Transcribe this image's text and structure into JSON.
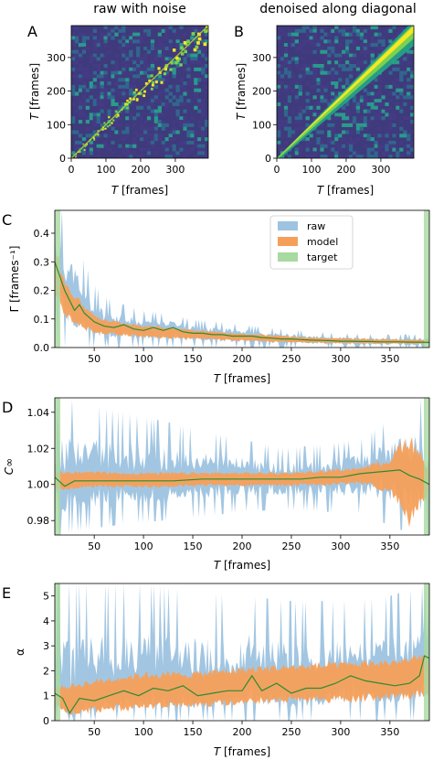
{
  "colors": {
    "raw": "#9dc3e0",
    "model": "#f5a05a",
    "target": "#a7d9a0",
    "target_line": "#2e8b2e",
    "heat_bg": "#3e3a7c",
    "heat_bright": "#f6e821"
  },
  "panel_a": {
    "label": "A",
    "title": "raw with noise",
    "xlabel_var": "T",
    "xlabel_unit": " [frames]",
    "ylabel_var": "T",
    "ylabel_unit": " [frames]",
    "xticks": [
      "0",
      "100",
      "200",
      "300"
    ],
    "yticks": [
      "0",
      "100",
      "200",
      "300"
    ]
  },
  "panel_b": {
    "label": "B",
    "title": "denoised along diagonal",
    "xlabel_var": "T",
    "xlabel_unit": " [frames]",
    "ylabel_var": "T",
    "ylabel_unit": " [frames]",
    "xticks": [
      "0",
      "100",
      "200",
      "300"
    ],
    "yticks": [
      "0",
      "100",
      "200",
      "300"
    ]
  },
  "chart_data": [
    {
      "type": "heatmap",
      "id": "A",
      "title": "raw with noise",
      "xlabel": "T [frames]",
      "ylabel": "T [frames]",
      "xlim": [
        0,
        395
      ],
      "ylim": [
        0,
        395
      ],
      "description_values": {
        "diagonal": "bright",
        "off_diagonal": "noise"
      }
    },
    {
      "type": "heatmap",
      "id": "B",
      "title": "denoised along diagonal",
      "xlabel": "T [frames]",
      "ylabel": "T [frames]",
      "xlim": [
        0,
        395
      ],
      "ylim": [
        0,
        395
      ]
    },
    {
      "type": "area",
      "id": "C",
      "label": "C",
      "xlabel_var": "T",
      "xlabel_unit": " [frames]",
      "ylabel": "Γ [frames⁻¹]",
      "xlim": [
        10,
        390
      ],
      "ylim": [
        0,
        0.48
      ],
      "xticks": [
        50,
        100,
        150,
        200,
        250,
        300,
        350
      ],
      "xtick_labels": [
        "50",
        "100",
        "150",
        "200",
        "250",
        "300",
        "350"
      ],
      "yticks": [
        0.0,
        0.1,
        0.2,
        0.3,
        0.4
      ],
      "ytick_labels": [
        "0.0",
        "0.1",
        "0.2",
        "0.3",
        "0.4"
      ],
      "legend": {
        "position": "top-right",
        "entries": [
          "raw",
          "model",
          "target"
        ]
      },
      "target": {
        "x": [
          10,
          20,
          30,
          35,
          40,
          50,
          60,
          70,
          80,
          90,
          100,
          110,
          120,
          130,
          140,
          150,
          160,
          170,
          180,
          190,
          200,
          210,
          220,
          230,
          240,
          250,
          260,
          270,
          280,
          290,
          300,
          310,
          320,
          330,
          340,
          350,
          360,
          370,
          380,
          390
        ],
        "y": [
          0.3,
          0.2,
          0.13,
          0.15,
          0.12,
          0.09,
          0.075,
          0.07,
          0.08,
          0.065,
          0.06,
          0.07,
          0.06,
          0.07,
          0.055,
          0.05,
          0.05,
          0.045,
          0.045,
          0.04,
          0.04,
          0.04,
          0.035,
          0.033,
          0.03,
          0.03,
          0.028,
          0.026,
          0.025,
          0.024,
          0.022,
          0.022,
          0.021,
          0.021,
          0.02,
          0.02,
          0.02,
          0.019,
          0.019,
          0.018
        ]
      },
      "model_band": {
        "x": [
          10,
          20,
          30,
          40,
          50,
          60,
          80,
          100,
          120,
          150,
          180,
          200,
          230,
          260,
          300,
          350,
          390
        ],
        "lower": [
          0.18,
          0.1,
          0.08,
          0.06,
          0.05,
          0.045,
          0.04,
          0.035,
          0.03,
          0.028,
          0.025,
          0.022,
          0.018,
          0.016,
          0.014,
          0.013,
          0.012
        ],
        "upper": [
          0.35,
          0.24,
          0.19,
          0.15,
          0.12,
          0.1,
          0.09,
          0.08,
          0.075,
          0.065,
          0.055,
          0.05,
          0.045,
          0.038,
          0.033,
          0.03,
          0.028
        ]
      },
      "raw_band": {
        "x": [
          10,
          20,
          30,
          40,
          50,
          60,
          80,
          100,
          120,
          150,
          180,
          200,
          230,
          260,
          300,
          350,
          390
        ],
        "lower": [
          0.0,
          0.0,
          0.0,
          0.0,
          0.0,
          0.0,
          0.0,
          0.0,
          0.0,
          0.0,
          0.0,
          0.0,
          0.0,
          0.0,
          0.0,
          0.0,
          0.0
        ],
        "upper": [
          0.48,
          0.48,
          0.4,
          0.3,
          0.22,
          0.18,
          0.15,
          0.13,
          0.12,
          0.1,
          0.09,
          0.08,
          0.07,
          0.06,
          0.05,
          0.045,
          0.048
        ]
      }
    },
    {
      "type": "area",
      "id": "D",
      "label": "D",
      "xlabel_var": "T",
      "xlabel_unit": " [frames]",
      "ylabel": "C∞",
      "xlim": [
        10,
        390
      ],
      "ylim": [
        0.972,
        1.048
      ],
      "xticks": [
        50,
        100,
        150,
        200,
        250,
        300,
        350
      ],
      "xtick_labels": [
        "50",
        "100",
        "150",
        "200",
        "250",
        "300",
        "350"
      ],
      "yticks": [
        0.98,
        1.0,
        1.02,
        1.04
      ],
      "ytick_labels": [
        "0.98",
        "1.00",
        "1.02",
        "1.04"
      ],
      "target": {
        "x": [
          10,
          20,
          30,
          50,
          80,
          100,
          130,
          160,
          200,
          230,
          260,
          280,
          300,
          320,
          340,
          360,
          370,
          380,
          390
        ],
        "y": [
          1.004,
          0.999,
          1.002,
          1.002,
          1.002,
          1.002,
          1.002,
          1.003,
          1.003,
          1.003,
          1.003,
          1.004,
          1.004,
          1.006,
          1.007,
          1.008,
          1.005,
          1.003,
          1.0
        ]
      },
      "model_band": {
        "x": [
          10,
          20,
          40,
          80,
          120,
          160,
          200,
          240,
          280,
          320,
          350,
          360,
          370,
          380,
          390
        ],
        "lower": [
          0.996,
          0.996,
          0.998,
          0.998,
          0.998,
          0.999,
          0.999,
          0.999,
          0.999,
          1.0,
          0.995,
          0.985,
          0.975,
          0.985,
          0.995
        ],
        "upper": [
          1.008,
          1.007,
          1.008,
          1.007,
          1.007,
          1.007,
          1.007,
          1.007,
          1.008,
          1.01,
          1.015,
          1.025,
          1.03,
          1.02,
          1.01
        ]
      },
      "raw_band": {
        "x": [
          10,
          20,
          40,
          80,
          120,
          160,
          200,
          240,
          280,
          320,
          360,
          380,
          390
        ],
        "lower": [
          0.972,
          0.972,
          0.975,
          0.978,
          0.98,
          0.982,
          0.985,
          0.986,
          0.985,
          0.984,
          0.975,
          0.972,
          0.972
        ],
        "upper": [
          1.048,
          1.048,
          1.045,
          1.04,
          1.035,
          1.03,
          1.025,
          1.02,
          1.022,
          1.025,
          1.04,
          1.048,
          1.048
        ]
      }
    },
    {
      "type": "area",
      "id": "E",
      "label": "E",
      "xlabel_var": "T",
      "xlabel_unit": " [frames]",
      "ylabel": "α",
      "xlim": [
        10,
        390
      ],
      "ylim": [
        0,
        5.5
      ],
      "xticks": [
        50,
        100,
        150,
        200,
        250,
        300,
        350
      ],
      "xtick_labels": [
        "50",
        "100",
        "150",
        "200",
        "250",
        "300",
        "350"
      ],
      "yticks": [
        0,
        1,
        2,
        3,
        4,
        5
      ],
      "ytick_labels": [
        "0",
        "1",
        "2",
        "3",
        "4",
        "5"
      ],
      "target": {
        "x": [
          10,
          18,
          25,
          35,
          50,
          65,
          80,
          95,
          110,
          125,
          140,
          155,
          170,
          185,
          200,
          210,
          220,
          235,
          250,
          265,
          280,
          295,
          310,
          325,
          340,
          355,
          370,
          380,
          385,
          390
        ],
        "y": [
          1.1,
          0.9,
          0.3,
          0.9,
          0.8,
          1.0,
          1.2,
          1.0,
          1.3,
          1.2,
          1.4,
          1.0,
          1.1,
          1.2,
          1.2,
          1.8,
          1.2,
          1.5,
          1.1,
          1.3,
          1.3,
          1.5,
          1.8,
          1.6,
          1.5,
          1.4,
          1.5,
          1.8,
          2.6,
          2.5
        ]
      },
      "model_band": {
        "x": [
          10,
          25,
          50,
          100,
          150,
          200,
          250,
          300,
          350,
          370,
          390
        ],
        "lower": [
          0.6,
          0.2,
          0.3,
          0.4,
          0.5,
          0.6,
          0.7,
          0.7,
          0.8,
          0.8,
          0.9
        ],
        "upper": [
          1.4,
          1.5,
          1.7,
          2.0,
          2.0,
          2.2,
          2.3,
          2.4,
          2.5,
          2.6,
          2.8
        ]
      },
      "raw_band": {
        "x": [
          10,
          25,
          50,
          100,
          150,
          200,
          250,
          300,
          350,
          390
        ],
        "lower": [
          0,
          0,
          0,
          0,
          0,
          0,
          0,
          0,
          0,
          0
        ],
        "upper": [
          5.5,
          5.5,
          5.5,
          5.5,
          5.2,
          5.0,
          4.8,
          4.8,
          5.0,
          5.5
        ]
      }
    }
  ]
}
